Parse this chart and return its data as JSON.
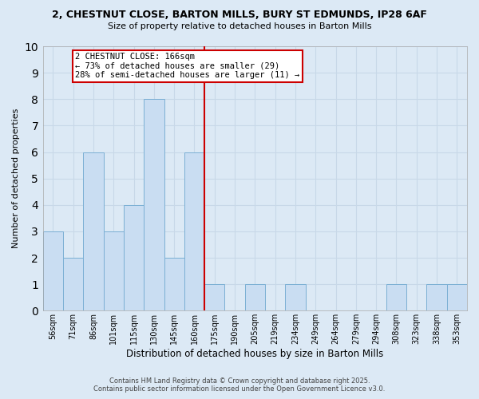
{
  "title1": "2, CHESTNUT CLOSE, BARTON MILLS, BURY ST EDMUNDS, IP28 6AF",
  "title2": "Size of property relative to detached houses in Barton Mills",
  "xlabel": "Distribution of detached houses by size in Barton Mills",
  "ylabel": "Number of detached properties",
  "bins": [
    "56sqm",
    "71sqm",
    "86sqm",
    "101sqm",
    "115sqm",
    "130sqm",
    "145sqm",
    "160sqm",
    "175sqm",
    "190sqm",
    "205sqm",
    "219sqm",
    "234sqm",
    "249sqm",
    "264sqm",
    "279sqm",
    "294sqm",
    "308sqm",
    "323sqm",
    "338sqm",
    "353sqm"
  ],
  "counts": [
    3,
    2,
    6,
    3,
    4,
    8,
    2,
    6,
    1,
    0,
    1,
    0,
    1,
    0,
    0,
    0,
    0,
    1,
    0,
    1,
    1
  ],
  "bar_color": "#c9ddf2",
  "bar_edge_color": "#7bafd4",
  "grid_color": "#c8d8e8",
  "bg_color": "#dce9f5",
  "vline_color": "#cc0000",
  "annotation_text": "2 CHESTNUT CLOSE: 166sqm\n← 73% of detached houses are smaller (29)\n28% of semi-detached houses are larger (11) →",
  "annotation_box_color": "white",
  "annotation_box_edge": "#cc0000",
  "ylim": [
    0,
    10
  ],
  "yticks": [
    0,
    1,
    2,
    3,
    4,
    5,
    6,
    7,
    8,
    9,
    10
  ],
  "footer1": "Contains HM Land Registry data © Crown copyright and database right 2025.",
  "footer2": "Contains public sector information licensed under the Open Government Licence v3.0."
}
